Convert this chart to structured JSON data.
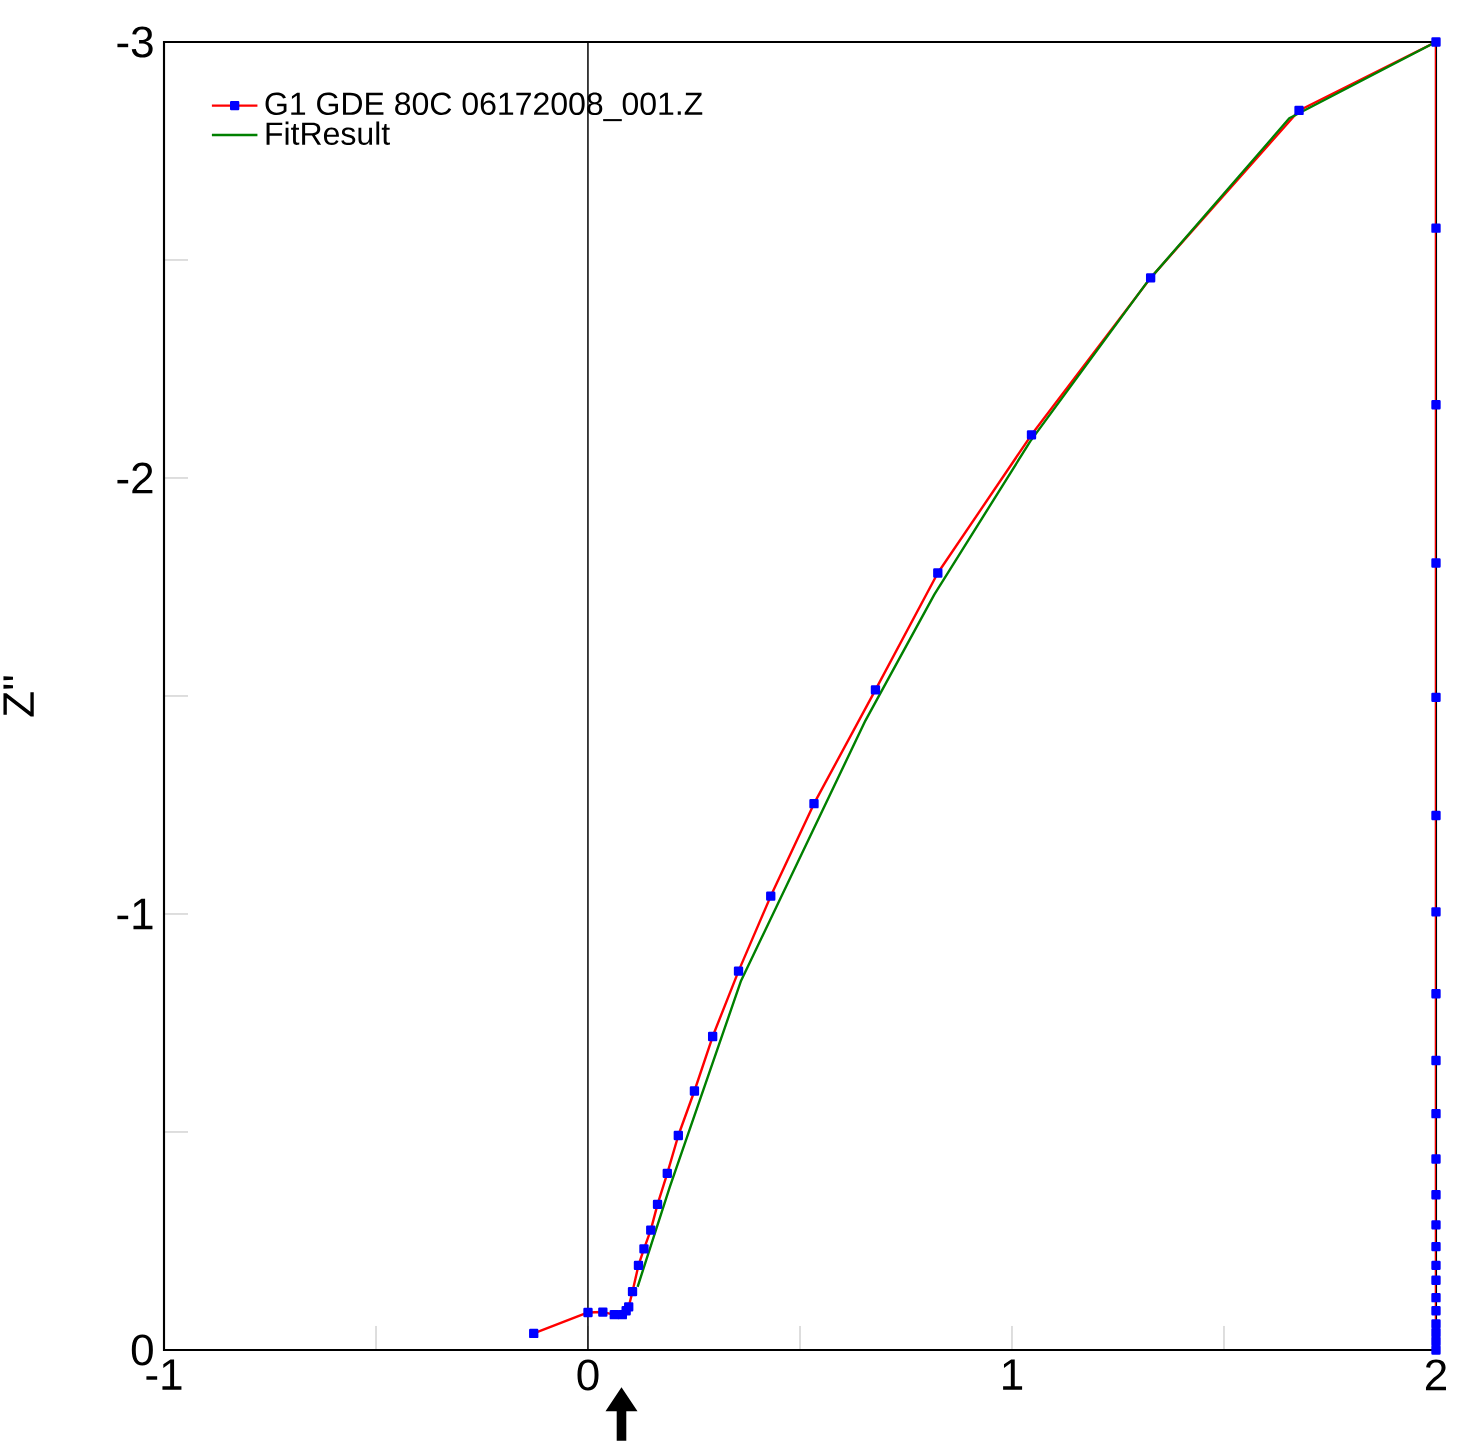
{
  "chart_data": {
    "type": "line",
    "ylabel": "Z''",
    "xlim": [
      -1,
      2
    ],
    "ylim": [
      0,
      -3
    ],
    "xticks": [
      -1,
      {
        "value": -0.5,
        "label": null
      },
      0,
      {
        "value": 0.5,
        "label": null
      },
      1,
      {
        "value": 1.5,
        "label": null
      },
      2
    ],
    "yticks": [
      0,
      {
        "value": -0.5,
        "label": null
      },
      -1,
      {
        "value": -1.5,
        "label": null
      },
      -2,
      {
        "value": -2.5,
        "label": null
      },
      -3
    ],
    "legend": "top left",
    "grid": false,
    "ref_lines": [
      {
        "axis": "x",
        "value": 0,
        "color": "#000000"
      }
    ],
    "series": [
      {
        "name": "G1 GDE 80C 06172008_001.Z",
        "color": "#ff0000",
        "marker": "square",
        "x": [
          -0.128,
          0,
          0.035,
          0.062,
          0.081,
          0.09,
          0.096,
          0.105,
          0.119,
          0.132,
          0.148,
          0.164,
          0.187,
          0.213,
          0.251,
          0.294,
          0.355,
          0.431,
          0.533,
          0.678,
          0.825,
          1.046,
          1.327,
          1.677,
          2,
          2,
          2,
          2,
          2,
          2,
          2,
          2,
          2,
          2,
          2,
          2,
          2,
          2,
          2,
          2,
          2,
          2,
          2,
          2,
          2,
          2
        ],
        "values": [
          -0.038,
          -0.086,
          -0.087,
          -0.081,
          -0.081,
          -0.09,
          -0.099,
          -0.134,
          -0.194,
          -0.232,
          -0.275,
          -0.334,
          -0.405,
          -0.492,
          -0.594,
          -0.719,
          -0.869,
          -1.041,
          -1.253,
          -1.514,
          -1.782,
          -2.099,
          -2.459,
          -2.843,
          -3,
          -2.573,
          -2.168,
          -1.805,
          -1.497,
          -1.226,
          -1.005,
          -0.817,
          -0.664,
          -0.542,
          -0.438,
          -0.356,
          -0.287,
          -0.237,
          -0.194,
          -0.16,
          -0.12,
          -0.09,
          -0.06,
          -0.04,
          -0.02,
          0
        ]
      },
      {
        "name": "FitResult",
        "color": "#008000",
        "marker": "none",
        "x": [
          0.117,
          0.193,
          0.361,
          0.654,
          0.817,
          1.043,
          1.32,
          1.654,
          2
        ],
        "values": [
          -0.145,
          -0.374,
          -0.847,
          -1.443,
          -1.733,
          -2.084,
          -2.451,
          -2.825,
          -3
        ]
      }
    ]
  }
}
